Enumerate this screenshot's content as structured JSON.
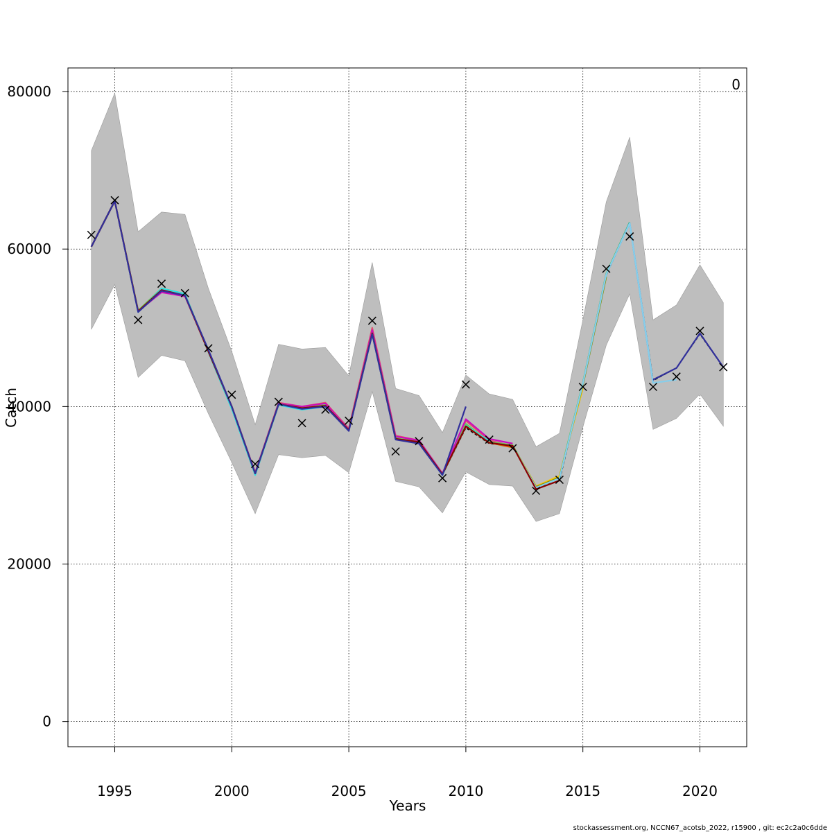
{
  "chart_data": {
    "type": "line",
    "xlabel": "Years",
    "ylabel": "Catch",
    "panel_label": "0",
    "xlim": [
      1993,
      2022
    ],
    "ylim": [
      -3200,
      83000
    ],
    "x_ticks": [
      1995,
      2000,
      2005,
      2010,
      2015,
      2020
    ],
    "y_ticks": [
      0,
      20000,
      40000,
      60000,
      80000
    ],
    "grid": true,
    "footer": "stockassessment.org, NCCN67_acotsb_2022, r15900 , git: ec2c2a0c6dde",
    "confidence_band": {
      "x": [
        1994,
        1995,
        1996,
        1997,
        1998,
        1999,
        2000,
        2001,
        2002,
        2003,
        2004,
        2005,
        2006,
        2007,
        2008,
        2009,
        2010,
        2011,
        2012,
        2013,
        2014,
        2015,
        2016,
        2017,
        2018,
        2019,
        2020,
        2021
      ],
      "upper": [
        72500,
        79800,
        62200,
        64700,
        64400,
        55000,
        47000,
        37700,
        47900,
        47300,
        47500,
        43900,
        58300,
        42300,
        41400,
        36700,
        44000,
        41600,
        40900,
        34900,
        36600,
        51000,
        66000,
        74200,
        51000,
        52900,
        58000,
        53200
      ],
      "lower": [
        49800,
        55500,
        43700,
        46500,
        45800,
        39100,
        32900,
        26400,
        33900,
        33500,
        33800,
        31600,
        41900,
        30500,
        29800,
        26500,
        31700,
        30100,
        29900,
        25400,
        26400,
        37400,
        47800,
        54300,
        37100,
        38500,
        41600,
        37500
      ],
      "color": "#bebebe"
    },
    "observations": {
      "x": [
        1994,
        1995,
        1996,
        1997,
        1998,
        1999,
        2000,
        2001,
        2002,
        2003,
        2004,
        2005,
        2006,
        2007,
        2008,
        2009,
        2010,
        2011,
        2012,
        2013,
        2014,
        2015,
        2016,
        2017,
        2018,
        2019,
        2020,
        2021
      ],
      "y": [
        61800,
        66200,
        51000,
        55600,
        54400,
        47400,
        41500,
        32700,
        40600,
        37900,
        39600,
        38200,
        50900,
        34300,
        35600,
        30900,
        42800,
        35800,
        34700,
        29300,
        30700,
        42500,
        57500,
        61600,
        42500,
        43800,
        49600,
        45000
      ]
    },
    "series": [
      {
        "color": "#000000",
        "dashed": true,
        "x": [
          1994,
          1995,
          1996,
          1997,
          1998,
          1999,
          2000,
          2001,
          2002,
          2003,
          2004,
          2005,
          2006,
          2007,
          2008,
          2009,
          2010,
          2011,
          2012,
          2013,
          2014,
          2015,
          2016,
          2017,
          2018,
          2019,
          2020,
          2021
        ],
        "y": [
          60300,
          66100,
          52100,
          54900,
          54100,
          47100,
          40000,
          31600,
          40300,
          39800,
          40100,
          37000,
          49200,
          35900,
          35400,
          31300,
          37300,
          35300,
          35000,
          29600,
          30600,
          42900,
          56700,
          63300,
          43300,
          44900,
          49200,
          45000
        ]
      },
      {
        "color": "#df536b",
        "x": [
          1994,
          1995,
          1996,
          1997,
          1998,
          1999,
          2000,
          2001,
          2002,
          2003,
          2004,
          2005,
          2006,
          2007,
          2008,
          2009,
          2010,
          2011,
          2012,
          2013
        ],
        "y": [
          60300,
          66100,
          52100,
          54600,
          54100,
          47100,
          40000,
          31600,
          40500,
          40000,
          40500,
          37200,
          50000,
          36300,
          35700,
          31500,
          38200,
          35700,
          35000,
          29700
        ]
      },
      {
        "color": "#61d04f",
        "x": [
          1994,
          1995,
          1996,
          1997,
          1998,
          1999,
          2000,
          2001,
          2002,
          2003,
          2004,
          2005,
          2006,
          2007,
          2008,
          2009,
          2010,
          2011,
          2012,
          2013,
          2014,
          2015,
          2016,
          2017
        ],
        "y": [
          60300,
          66100,
          52200,
          55000,
          54300,
          47000,
          40000,
          31500,
          40400,
          39800,
          40200,
          37000,
          49400,
          36000,
          35500,
          31400,
          37800,
          35500,
          35100,
          29800,
          31100,
          43000,
          56900,
          63400
        ]
      },
      {
        "color": "#2297e6",
        "x": [
          1994,
          1995,
          1996,
          1997,
          1998,
          1999,
          2000,
          2001,
          2002,
          2003,
          2004,
          2005,
          2006,
          2007,
          2008,
          2009,
          2010,
          2011,
          2012,
          2013,
          2014,
          2015,
          2016,
          2017,
          2018
        ],
        "y": [
          60300,
          66100,
          52100,
          54800,
          54100,
          47000,
          40000,
          31500,
          40300,
          39800,
          40100,
          37000,
          49300,
          35900,
          35500,
          31400,
          37500,
          35400,
          35000,
          29700,
          30900,
          42900,
          56800,
          63300,
          43000
        ]
      },
      {
        "color": "#28e2e5",
        "x": [
          1994,
          1995,
          1996,
          1997,
          1998,
          1999,
          2000,
          2001,
          2002,
          2003,
          2004,
          2005,
          2006,
          2007,
          2008,
          2009,
          2010,
          2011
        ],
        "y": [
          60300,
          66100,
          52000,
          55000,
          54300,
          46900,
          39700,
          31300,
          40200,
          39600,
          40000,
          37000,
          49200,
          35900,
          35400,
          31300,
          37600,
          35600
        ]
      },
      {
        "color": "#cd0bbc",
        "x": [
          1994,
          1995,
          1996,
          1997,
          1998,
          1999,
          2000,
          2001,
          2002,
          2003,
          2004,
          2005,
          2006,
          2007,
          2008,
          2009,
          2010,
          2011,
          2012
        ],
        "y": [
          60300,
          66100,
          52100,
          54500,
          54000,
          47000,
          40000,
          31600,
          40400,
          40000,
          40400,
          37100,
          49700,
          36200,
          35700,
          31500,
          38400,
          35900,
          35300
        ]
      },
      {
        "color": "#f5c710",
        "x": [
          1994,
          1995,
          1996,
          1997,
          1998,
          1999,
          2000,
          2001,
          2002,
          2003,
          2004,
          2005,
          2006,
          2007,
          2008,
          2009,
          2010,
          2011,
          2012,
          2013,
          2014,
          2015
        ],
        "y": [
          60300,
          66100,
          52100,
          54800,
          54100,
          47000,
          40000,
          31500,
          40300,
          39800,
          40100,
          37000,
          49300,
          35900,
          35500,
          31400,
          37500,
          35400,
          35000,
          29900,
          31200,
          42300
        ]
      },
      {
        "color": "#8b8b00",
        "x": [
          1994,
          1995,
          1996,
          1997,
          1998,
          1999,
          2000,
          2001,
          2002,
          2003,
          2004,
          2005,
          2006,
          2007,
          2008,
          2009,
          2010,
          2011,
          2012,
          2013,
          2014,
          2015,
          2016
        ],
        "y": [
          60300,
          66100,
          52100,
          54800,
          54100,
          47000,
          40000,
          31500,
          40300,
          39800,
          40100,
          37000,
          49300,
          35900,
          35500,
          31400,
          37500,
          35400,
          35000,
          29800,
          31000,
          42700,
          56500
        ]
      },
      {
        "color": "#1b9e77",
        "x": [
          1994,
          1995,
          1996,
          1997,
          1998,
          1999,
          2000,
          2001,
          2002,
          2003,
          2004,
          2005,
          2006,
          2007,
          2008,
          2009,
          2010,
          2011,
          2012,
          2013,
          2014,
          2015,
          2016,
          2017
        ],
        "y": [
          60300,
          66100,
          52100,
          54800,
          54100,
          47000,
          40000,
          31500,
          40300,
          39800,
          40100,
          37000,
          49300,
          35900,
          35500,
          31400,
          37500,
          35400,
          35000,
          29700,
          30900,
          42900,
          56800,
          63400
        ]
      },
      {
        "color": "#87ceeb",
        "x": [
          1994,
          1995,
          1996,
          1997,
          1998,
          1999,
          2000,
          2001,
          2002,
          2003,
          2004,
          2005,
          2006,
          2007,
          2008,
          2009,
          2010,
          2011,
          2012,
          2013,
          2014,
          2015,
          2016,
          2017,
          2018,
          2019
        ],
        "y": [
          60300,
          66100,
          52100,
          54800,
          54100,
          47000,
          40000,
          31500,
          40300,
          39800,
          40100,
          37000,
          49300,
          35900,
          35500,
          31400,
          37500,
          35400,
          35000,
          29700,
          30900,
          42900,
          56800,
          63300,
          43000,
          43400
        ]
      },
      {
        "color": "#d95f02",
        "x": [
          1994,
          1995,
          1996,
          1997,
          1998,
          1999,
          2000,
          2001,
          2002,
          2003,
          2004,
          2005,
          2006,
          2007,
          2008,
          2009,
          2010,
          2011,
          2012
        ],
        "y": [
          60300,
          66100,
          52100,
          54800,
          54100,
          47000,
          40000,
          31500,
          40300,
          39800,
          40100,
          37000,
          49300,
          35900,
          35500,
          31400,
          37500,
          35400,
          34800
        ]
      },
      {
        "color": "#8b0000",
        "x": [
          1994,
          1995,
          1996,
          1997,
          1998,
          1999,
          2000,
          2001,
          2002,
          2003,
          2004,
          2005,
          2006,
          2007,
          2008,
          2009,
          2010,
          2011,
          2012,
          2013,
          2014
        ],
        "y": [
          60300,
          66100,
          52100,
          54800,
          54100,
          47000,
          40000,
          31500,
          40300,
          39800,
          40100,
          37000,
          49300,
          35900,
          35500,
          31400,
          37500,
          35400,
          35000,
          29500,
          30600
        ]
      },
      {
        "color": "#31309b",
        "x": [
          1994,
          1995,
          1996,
          1997,
          1998,
          1999,
          2000,
          2001,
          2002,
          2003,
          2004,
          2005,
          2006,
          2007,
          2008,
          2009,
          2010
        ],
        "y": [
          60300,
          66100,
          52000,
          54700,
          54100,
          47200,
          40000,
          31500,
          40300,
          39700,
          40000,
          36900,
          49200,
          35800,
          35300,
          31300,
          40000
        ]
      },
      {
        "color": "#31309b",
        "x": [
          2018,
          2019,
          2020,
          2021
        ],
        "y": [
          43400,
          44900,
          49300,
          45000
        ]
      }
    ]
  }
}
